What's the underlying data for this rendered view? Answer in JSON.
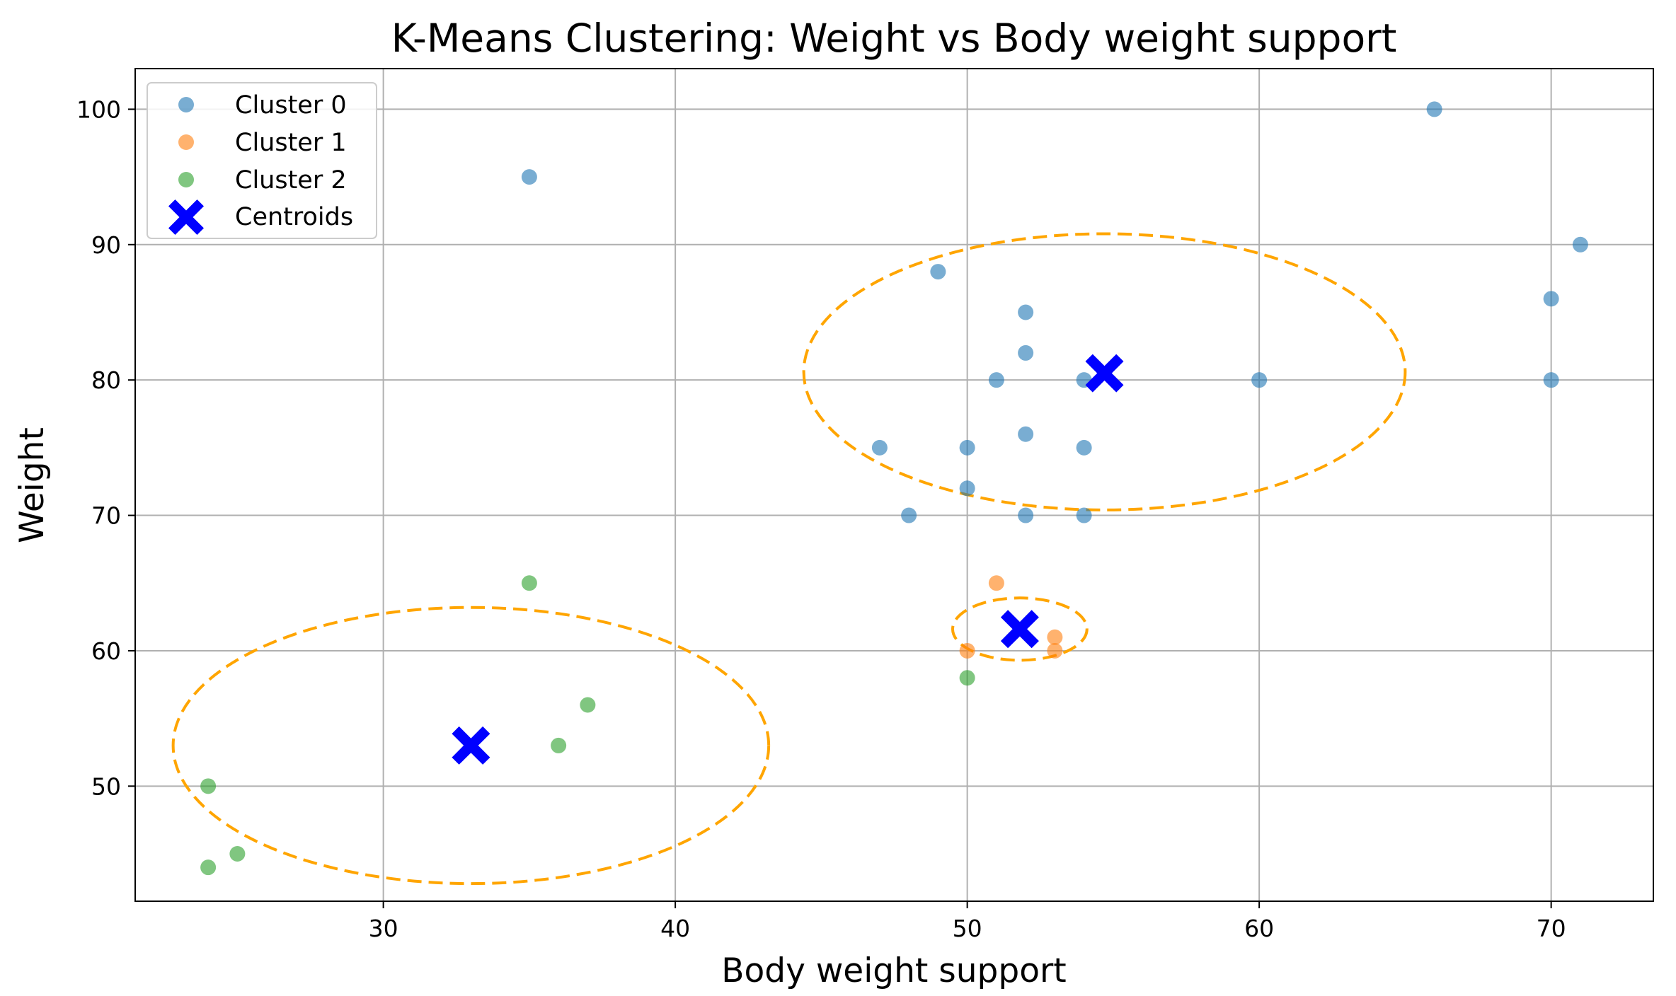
{
  "chart_data": {
    "type": "scatter",
    "title": "K-Means Clustering: Weight vs Body weight support",
    "xlabel": "Body weight support",
    "ylabel": "Weight",
    "xlim": [
      21.5,
      73.5
    ],
    "ylim": [
      41.5,
      103
    ],
    "xticks": [
      30,
      40,
      50,
      60,
      70
    ],
    "yticks": [
      50,
      60,
      70,
      80,
      90,
      100
    ],
    "grid": true,
    "legend_position": "top-left",
    "series": [
      {
        "name": "Cluster 0",
        "color": "#1f77b4",
        "points": [
          [
            35,
            95
          ],
          [
            49,
            88
          ],
          [
            52,
            85
          ],
          [
            52,
            82
          ],
          [
            51,
            80
          ],
          [
            54,
            80
          ],
          [
            60,
            80
          ],
          [
            47,
            75
          ],
          [
            50,
            75
          ],
          [
            52,
            76
          ],
          [
            54,
            75
          ],
          [
            50,
            72
          ],
          [
            48,
            70
          ],
          [
            52,
            70
          ],
          [
            54,
            70
          ],
          [
            66,
            100
          ],
          [
            71,
            90
          ],
          [
            70,
            86
          ],
          [
            70,
            80
          ]
        ]
      },
      {
        "name": "Cluster 1",
        "color": "#ff7f0e",
        "points": [
          [
            51,
            65
          ],
          [
            53,
            61
          ],
          [
            50,
            60
          ],
          [
            53,
            60
          ]
        ]
      },
      {
        "name": "Cluster 2",
        "color": "#2ca02c",
        "points": [
          [
            35,
            65
          ],
          [
            37,
            56
          ],
          [
            36,
            53
          ],
          [
            50,
            58
          ],
          [
            24,
            50
          ],
          [
            25,
            45
          ],
          [
            24,
            44
          ]
        ]
      }
    ],
    "centroids": {
      "name": "Centroids",
      "color": "#0000ff",
      "marker": "X",
      "points": [
        [
          54.7,
          80.5
        ],
        [
          51.8,
          61.6
        ],
        [
          33.0,
          53.0
        ]
      ]
    },
    "ellipses": {
      "color": "#ffa500",
      "style": "dashed",
      "items": [
        {
          "center": [
            54.7,
            80.6
          ],
          "rx": 10.3,
          "ry": 10.2
        },
        {
          "center": [
            51.8,
            61.6
          ],
          "rx": 2.3,
          "ry": 2.3
        },
        {
          "center": [
            33.0,
            53.0
          ],
          "rx": 10.2,
          "ry": 10.2
        }
      ]
    }
  }
}
